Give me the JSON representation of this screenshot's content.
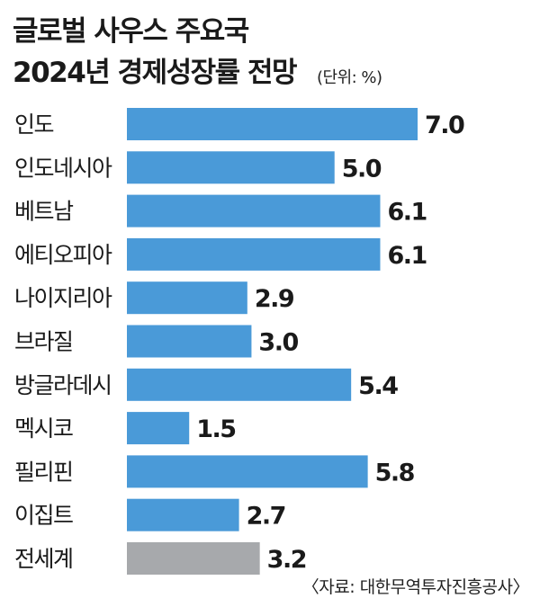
{
  "chart_data": {
    "type": "bar",
    "orientation": "horizontal",
    "title_line1": "글로벌 사우스 주요국",
    "title_line2": "2024년 경제성장률 전망",
    "unit": "(단위: %)",
    "categories": [
      "인도",
      "인도네시아",
      "베트남",
      "에티오피아",
      "나이지리아",
      "브라질",
      "방글라데시",
      "멕시코",
      "필리핀",
      "이집트",
      "전세계"
    ],
    "values": [
      7.0,
      5.0,
      6.1,
      6.1,
      2.9,
      3.0,
      5.4,
      1.5,
      5.8,
      2.7,
      3.2
    ],
    "value_labels": [
      "7.0",
      "5.0",
      "6.1",
      "6.1",
      "2.9",
      "3.0",
      "5.4",
      "1.5",
      "5.8",
      "2.7",
      "3.2"
    ],
    "bar_color": "#4a9ad8",
    "highlight_color": "#a7a9ac",
    "highlight_category": "전세계",
    "xlim": [
      0,
      7.0
    ],
    "grid": false,
    "source": "〈자료: 대한무역투자진흥공사〉"
  }
}
